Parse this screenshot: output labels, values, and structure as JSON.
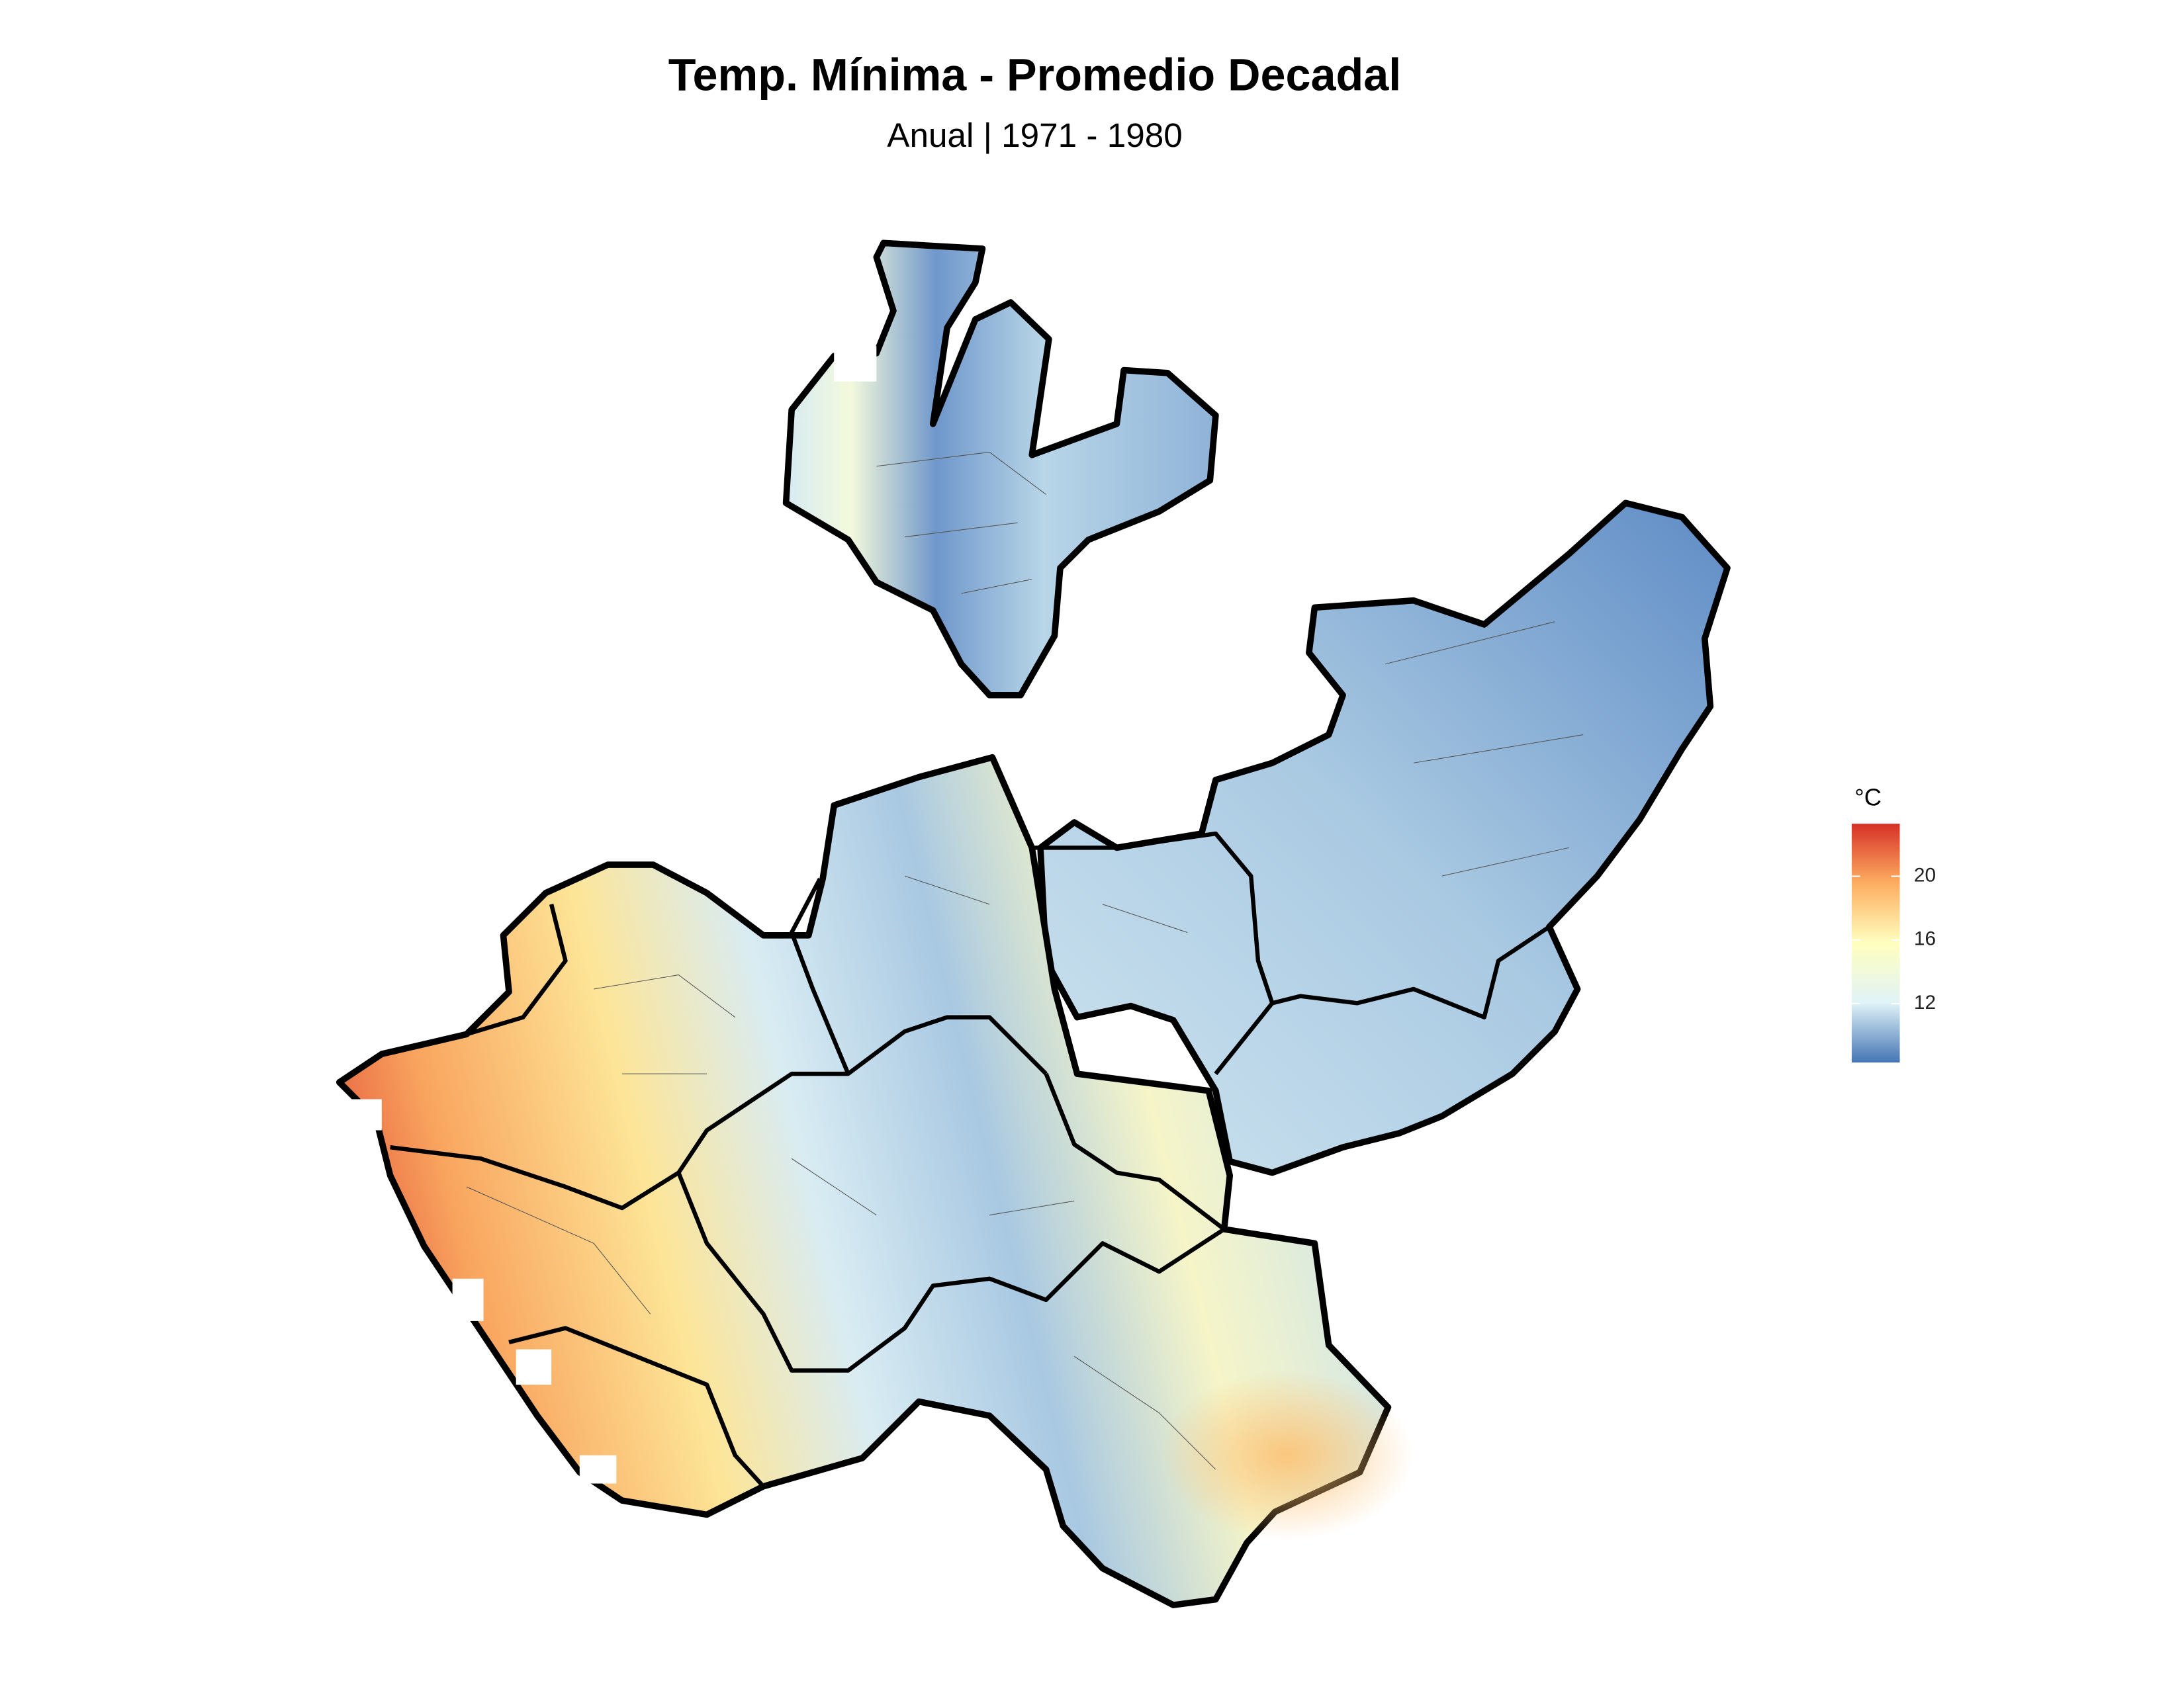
{
  "title": "Temp. Mínima - Promedio Decadal",
  "subtitle": "Anual | 1971 - 1980",
  "legend": {
    "title": "°C",
    "ticks": [
      12,
      16,
      20
    ],
    "lim": [
      8.3,
      23.3
    ],
    "colors": [
      "#4575b4",
      "#e0f3f8",
      "#ffffbf",
      "#fdae61",
      "#d73027"
    ]
  }
}
